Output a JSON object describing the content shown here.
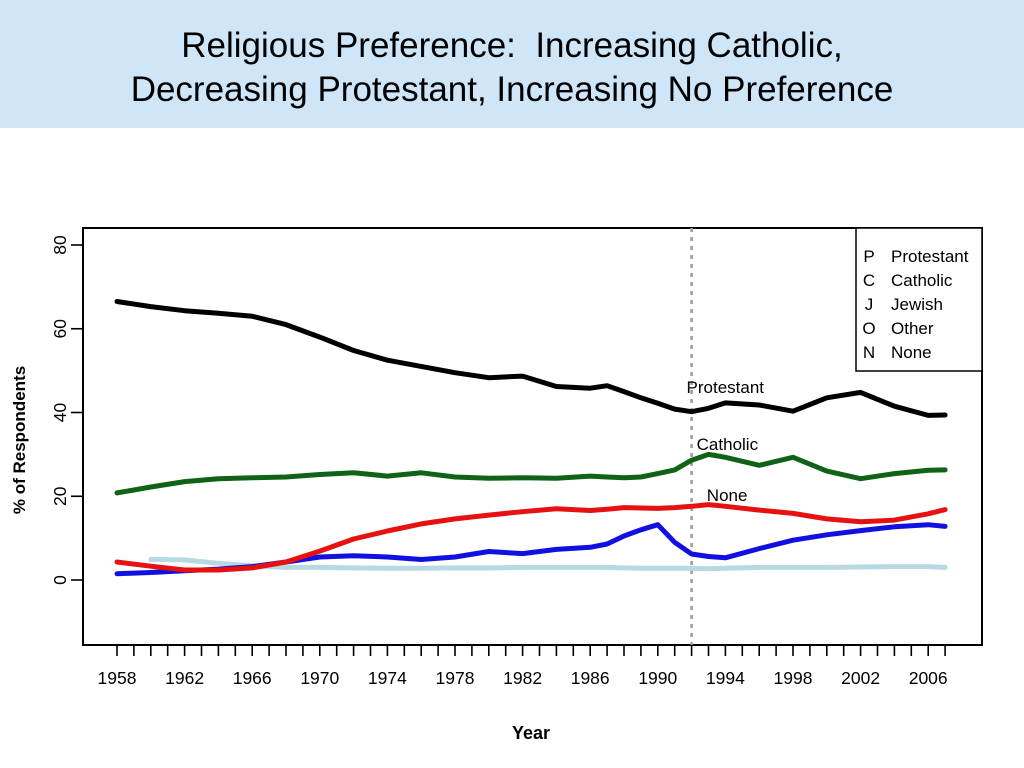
{
  "slide": {
    "title_line1": "Religious Preference:  Increasing Catholic,",
    "title_line2": "Decreasing Protestant, Increasing No Preference",
    "band_color": "#cee6f8"
  },
  "chart_data": {
    "type": "line",
    "xlabel": "Year",
    "ylabel": "% of Respondents",
    "xlim": [
      1956,
      2009
    ],
    "ylim": [
      0,
      84
    ],
    "grid": "off",
    "legend_position": "top-right",
    "x_tick_labels": [
      1958,
      1962,
      1966,
      1970,
      1974,
      1978,
      1982,
      1986,
      1990,
      1994,
      1998,
      2002,
      2006
    ],
    "x_minor_ticks": {
      "start": 1958,
      "end": 2007,
      "step": 1
    },
    "y_ticks": [
      0,
      20,
      40,
      60,
      80
    ],
    "reference_line": {
      "year": 1992,
      "style": "dashed",
      "color": "#9c9c9c"
    },
    "years": [
      1958,
      1960,
      1962,
      1964,
      1966,
      1968,
      1970,
      1972,
      1974,
      1976,
      1978,
      1980,
      1982,
      1984,
      1986,
      1987,
      1988,
      1989,
      1990,
      1991,
      1992,
      1993,
      1994,
      1996,
      1998,
      2000,
      2002,
      2004,
      2006,
      2007
    ],
    "series": [
      {
        "name": "Protestant",
        "letter": "P",
        "color": "#000000",
        "values": [
          66.5,
          65.3,
          64.3,
          63.7,
          63.0,
          61.0,
          58.0,
          54.8,
          52.5,
          51.0,
          49.5,
          48.3,
          48.7,
          46.2,
          45.8,
          46.4,
          45.0,
          43.5,
          42.2,
          40.8,
          40.2,
          41.0,
          42.3,
          41.8,
          40.3,
          43.5,
          44.8,
          41.5,
          39.3,
          39.4
        ]
      },
      {
        "name": "Catholic",
        "letter": "C",
        "color": "#106216",
        "values": [
          20.8,
          22.2,
          23.5,
          24.2,
          24.4,
          24.6,
          25.2,
          25.6,
          24.8,
          25.6,
          24.6,
          24.3,
          24.4,
          24.3,
          24.8,
          24.6,
          24.4,
          24.6,
          25.4,
          26.3,
          28.6,
          30.0,
          29.3,
          27.4,
          29.3,
          26.0,
          24.2,
          25.4,
          26.2,
          26.3
        ]
      },
      {
        "name": "Jewish",
        "letter": "J",
        "color": "#b7d9e4",
        "values": [
          null,
          4.9,
          4.8,
          4.0,
          3.4,
          3.0,
          3.0,
          2.9,
          2.8,
          2.8,
          2.9,
          2.9,
          3.0,
          3.0,
          3.0,
          3.0,
          2.9,
          2.8,
          2.8,
          2.8,
          2.8,
          2.7,
          2.8,
          3.0,
          3.0,
          3.0,
          3.1,
          3.2,
          3.2,
          3.0
        ]
      },
      {
        "name": "Other",
        "letter": "O",
        "color": "#1010e0",
        "values": [
          1.5,
          1.8,
          2.2,
          2.6,
          3.2,
          4.3,
          5.5,
          5.8,
          5.5,
          4.9,
          5.5,
          6.8,
          6.3,
          7.3,
          7.8,
          8.6,
          10.5,
          12.0,
          13.2,
          9.0,
          6.2,
          5.6,
          5.3,
          7.5,
          9.5,
          10.8,
          11.8,
          12.7,
          13.2,
          12.8
        ]
      },
      {
        "name": "None",
        "letter": "N",
        "color": "#e61212",
        "values": [
          4.3,
          3.3,
          2.4,
          2.4,
          2.9,
          4.3,
          6.9,
          9.8,
          11.7,
          13.4,
          14.6,
          15.5,
          16.3,
          17.0,
          16.6,
          16.9,
          17.3,
          17.2,
          17.1,
          17.3,
          17.6,
          18.0,
          17.6,
          16.7,
          15.9,
          14.6,
          13.9,
          14.3,
          15.8,
          16.8
        ]
      }
    ],
    "annotations": [
      {
        "text": "Protestant",
        "year": 1991.7,
        "value": 44.6
      },
      {
        "text": "Catholic",
        "year": 1992.3,
        "value": 31.0
      },
      {
        "text": "None",
        "year": 1992.9,
        "value": 18.9
      }
    ]
  }
}
